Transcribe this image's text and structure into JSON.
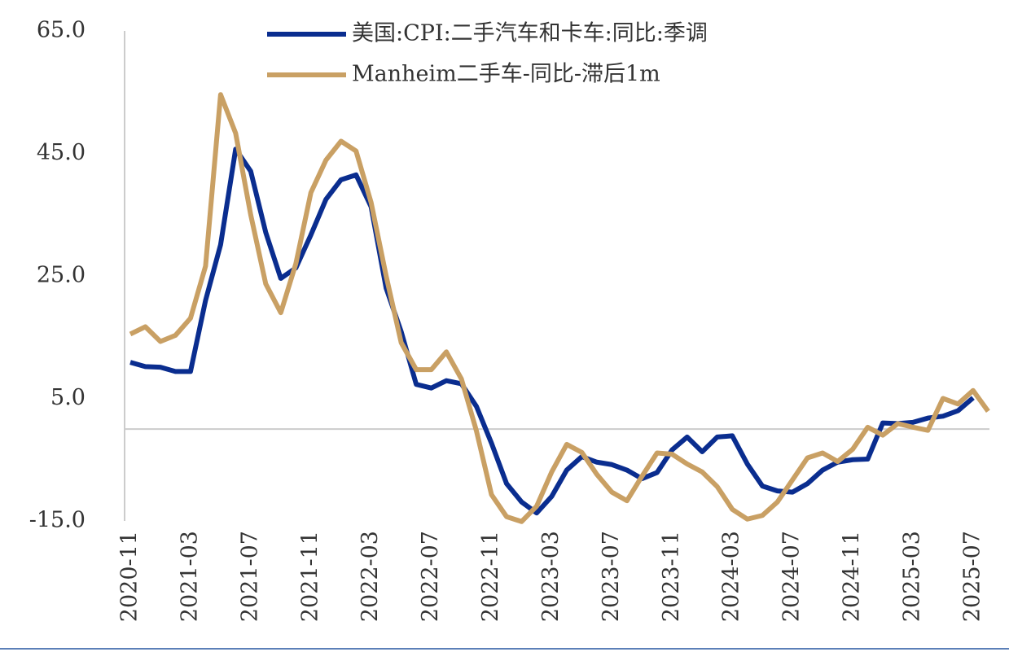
{
  "chart_data": {
    "type": "line",
    "categories": [
      "2020-11",
      null,
      null,
      null,
      "2021-03",
      null,
      null,
      null,
      "2021-07",
      null,
      null,
      null,
      "2021-11",
      null,
      null,
      null,
      "2022-03",
      null,
      null,
      null,
      "2022-07",
      null,
      null,
      null,
      "2022-11",
      null,
      null,
      null,
      "2023-03",
      null,
      null,
      null,
      "2023-07",
      null,
      null,
      null,
      "2023-11",
      null,
      null,
      null,
      "2024-03",
      null,
      null,
      null,
      "2024-07",
      null,
      null,
      null,
      "2024-11",
      null,
      null,
      null,
      "2025-03",
      null,
      null,
      null,
      "2025-07",
      null
    ],
    "series": [
      {
        "name": "美国:CPI:二手汽车和卡车:同比:季调",
        "color": "#0a2d8f",
        "values": [
          10.9,
          10.2,
          10.1,
          9.4,
          9.4,
          21.0,
          30.1,
          45.7,
          42.1,
          32.1,
          24.6,
          26.3,
          31.7,
          37.5,
          40.7,
          41.5,
          36.3,
          23.0,
          15.9,
          7.3,
          6.7,
          7.9,
          7.4,
          3.7,
          -2.3,
          -8.9,
          -11.9,
          -13.7,
          -11.0,
          -6.7,
          -4.5,
          -5.4,
          -5.8,
          -6.7,
          -8.1,
          -7.1,
          -3.4,
          -1.3,
          -3.7,
          -1.3,
          -1.1,
          -5.7,
          -9.3,
          -10.1,
          -10.3,
          -8.9,
          -6.7,
          -5.4,
          -5.0,
          -4.9,
          1.0,
          0.9,
          1.1,
          1.8,
          2.1,
          3.0,
          5.1,
          null
        ]
      },
      {
        "name": "Manheim二手车-同比-滞后1m",
        "color": "#c9a064",
        "values": [
          15.5,
          16.7,
          14.3,
          15.3,
          18.1,
          26.6,
          54.6,
          48.3,
          35.0,
          23.7,
          19.0,
          27.0,
          38.6,
          43.9,
          47.0,
          45.4,
          37.0,
          25.0,
          14.1,
          9.7,
          9.7,
          12.6,
          8.2,
          -0.3,
          -10.7,
          -14.3,
          -15.1,
          -12.6,
          -7.0,
          -2.5,
          -3.8,
          -7.4,
          -10.3,
          -11.7,
          -7.7,
          -3.9,
          -4.1,
          -5.7,
          -7.0,
          -9.4,
          -13.1,
          -14.7,
          -14.1,
          -11.9,
          -8.3,
          -4.7,
          -3.9,
          -5.3,
          -3.3,
          0.3,
          -1.0,
          0.9,
          0.3,
          -0.2,
          5.0,
          4.1,
          6.3,
          2.9
        ]
      }
    ],
    "ylim": [
      -15,
      65
    ],
    "yticks": [
      {
        "value": -15,
        "label": "-15.0"
      },
      {
        "value": 5,
        "label": "5.0"
      },
      {
        "value": 25,
        "label": "25.0"
      },
      {
        "value": 45,
        "label": "45.0"
      },
      {
        "value": 65,
        "label": "65.0"
      }
    ],
    "legend": "top"
  }
}
